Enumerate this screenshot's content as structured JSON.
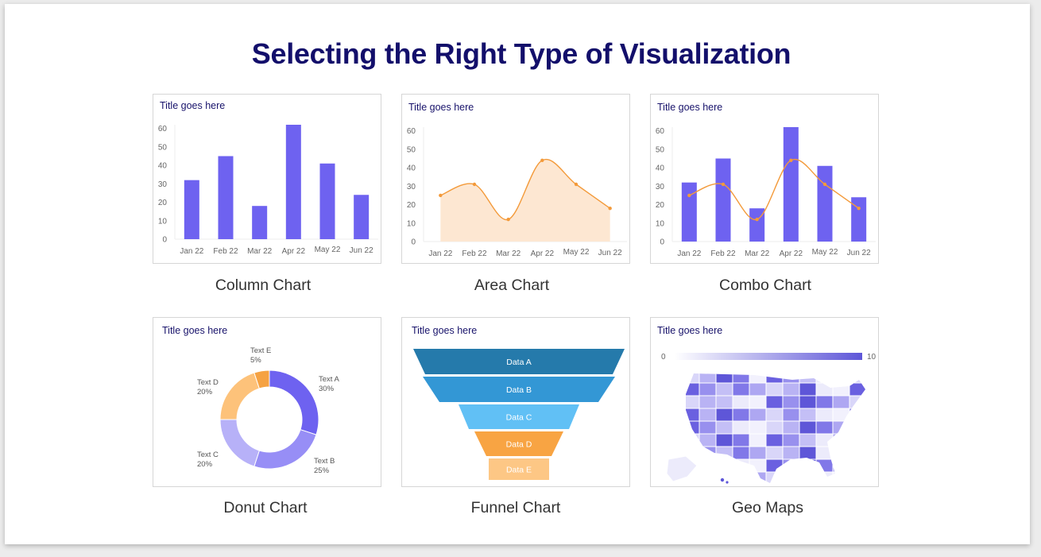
{
  "page_title": "Selecting the Right Type of Visualization",
  "card_title": "Title goes here",
  "colors": {
    "bar": "#6e62f0",
    "line": "#f39a3a",
    "area_fill": "#fde7d2",
    "heading": "#130f6b"
  },
  "chart_data": [
    {
      "type": "bar",
      "caption": "Column Chart",
      "title": "Title goes here",
      "categories": [
        "Jan 22",
        "Feb 22",
        "Mar 22",
        "Apr 22",
        "May 22",
        "Jun 22"
      ],
      "values": [
        32,
        45,
        18,
        62,
        41,
        24
      ],
      "yticks": [
        0,
        10,
        20,
        30,
        40,
        50,
        60
      ],
      "ylim": [
        0,
        62
      ]
    },
    {
      "type": "area",
      "caption": "Area Chart",
      "title": "Title goes here",
      "categories": [
        "Jan 22",
        "Feb 22",
        "Mar 22",
        "Apr 22",
        "May 22",
        "Jun 22"
      ],
      "values": [
        25,
        31,
        12,
        44,
        31,
        18
      ],
      "yticks": [
        0,
        10,
        20,
        30,
        40,
        50,
        60
      ],
      "ylim": [
        0,
        62
      ]
    },
    {
      "type": "combo",
      "caption": "Combo Chart",
      "title": "Title goes here",
      "categories": [
        "Jan 22",
        "Feb 22",
        "Mar 22",
        "Apr 22",
        "May 22",
        "Jun 22"
      ],
      "bar_values": [
        32,
        45,
        18,
        62,
        41,
        24
      ],
      "line_values": [
        25,
        31,
        12,
        44,
        31,
        18
      ],
      "yticks": [
        0,
        10,
        20,
        30,
        40,
        50,
        60
      ],
      "ylim": [
        0,
        62
      ]
    },
    {
      "type": "pie",
      "caption": "Donut Chart",
      "title": "Title goes here",
      "slices": [
        {
          "label": "Text A",
          "pct_label": "30%",
          "value": 30,
          "color": "#6e62f0"
        },
        {
          "label": "Text B",
          "pct_label": "25%",
          "value": 25,
          "color": "#978ef6"
        },
        {
          "label": "Text C",
          "pct_label": "20%",
          "value": 20,
          "color": "#b7b1f8"
        },
        {
          "label": "Text D",
          "pct_label": "20%",
          "value": 20,
          "color": "#fdc27a"
        },
        {
          "label": "Text E",
          "pct_label": "5%",
          "value": 5,
          "color": "#f5a243"
        }
      ]
    },
    {
      "type": "funnel",
      "caption": "Funnel Chart",
      "title": "Title goes here",
      "stages": [
        {
          "label": "Data A",
          "color": "#257aab"
        },
        {
          "label": "Data B",
          "color": "#3397d5"
        },
        {
          "label": "Data C",
          "color": "#61c0f5"
        },
        {
          "label": "Data D",
          "color": "#f8a443"
        },
        {
          "label": "Data E",
          "color": "#fdc785"
        }
      ]
    },
    {
      "type": "heatmap",
      "caption": "Geo Maps",
      "title": "Title goes here",
      "scale_min": "0",
      "scale_max": "10",
      "color_low": "#ffffff",
      "color_high": "#5e56d8"
    }
  ]
}
